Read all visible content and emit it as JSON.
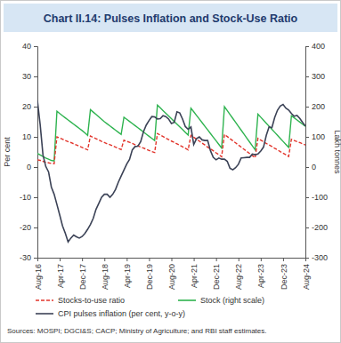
{
  "chart_data": {
    "type": "line",
    "title": "Chart II.14: Pulses Inflation and Stock-Use Ratio",
    "source": "Sources: MOSPI; DGCI&S; CACP; Ministry of Agriculture; and RBI staff estimates.",
    "y_label": "Per cent",
    "y2_label": "Lakh tonnes",
    "categories": [
      "Aug-16",
      null,
      null,
      null,
      null,
      null,
      null,
      null,
      "Apr-17",
      null,
      null,
      null,
      null,
      null,
      null,
      null,
      "Dec-17",
      null,
      null,
      null,
      null,
      null,
      null,
      null,
      "Aug-18",
      null,
      null,
      null,
      null,
      null,
      null,
      null,
      "Apr-19",
      null,
      null,
      null,
      null,
      null,
      null,
      null,
      "Dec-19",
      null,
      null,
      null,
      null,
      null,
      null,
      null,
      "Aug-20",
      null,
      null,
      null,
      null,
      null,
      null,
      null,
      "Apr-21",
      null,
      null,
      null,
      null,
      null,
      null,
      null,
      "Dec-21",
      null,
      null,
      null,
      null,
      null,
      null,
      null,
      "Aug-22",
      null,
      null,
      null,
      null,
      null,
      null,
      null,
      "Apr-23",
      null,
      null,
      null,
      null,
      null,
      null,
      null,
      "Dec-23",
      null,
      null,
      null,
      null,
      null,
      null,
      null,
      "Aug-24"
    ],
    "ylim": [
      -30,
      40
    ],
    "yticks": [
      -30,
      -20,
      -10,
      0,
      10,
      20,
      30,
      40
    ],
    "y2lim": [
      -300,
      400
    ],
    "y2ticks": [
      -300,
      -200,
      -100,
      0,
      100,
      200,
      300,
      400
    ],
    "grid": false,
    "legend": "bottom",
    "series": [
      {
        "name": "Stocks-to-use ratio",
        "color": "#e2342b",
        "line_style": "dashed",
        "values": [
          2.4,
          2.2,
          1.9,
          1.6,
          1.4,
          1.2,
          1.1,
          10.0,
          9.6,
          9.2,
          8.8,
          8.4,
          8.1,
          7.7,
          7.3,
          6.9,
          6.5,
          6.1,
          5.7,
          10.3,
          9.8,
          9.4,
          9.0,
          8.5,
          8.1,
          7.7,
          7.4,
          7.0,
          6.6,
          6.2,
          5.8,
          8.9,
          8.5,
          8.2,
          7.8,
          7.4,
          7.0,
          6.6,
          6.3,
          5.9,
          5.5,
          5.1,
          4.8,
          11.1,
          10.6,
          10.1,
          9.6,
          9.1,
          8.6,
          8.2,
          7.7,
          7.2,
          6.7,
          6.2,
          5.7,
          10.5,
          9.9,
          9.2,
          8.6,
          7.9,
          7.3,
          6.6,
          6.0,
          5.4,
          4.7,
          4.1,
          3.4,
          10.8,
          10.1,
          9.4,
          8.7,
          8.0,
          7.3,
          6.6,
          5.9,
          5.2,
          4.5,
          3.8,
          3.1,
          9.5,
          8.9,
          8.4,
          7.8,
          7.3,
          6.8,
          6.2,
          5.7,
          5.1,
          4.6,
          4.1,
          3.5,
          9.2,
          8.8,
          8.4,
          8.1,
          7.7,
          7.3
        ]
      },
      {
        "name": "Stock (right scale)",
        "color": "#2eb34f",
        "line_style": "solid",
        "axis": "y2",
        "values": [
          45,
          40,
          35,
          30,
          26,
          22,
          20,
          185,
          177,
          170,
          163,
          156,
          149,
          142,
          135,
          128,
          121,
          113,
          105,
          190,
          182,
          174,
          166,
          158,
          150,
          143,
          136,
          129,
          122,
          115,
          108,
          165,
          158,
          151,
          144,
          137,
          130,
          123,
          116,
          109,
          102,
          95,
          88,
          205,
          196,
          187,
          178,
          169,
          160,
          151,
          142,
          133,
          124,
          115,
          106,
          195,
          183,
          171,
          159,
          147,
          135,
          123,
          111,
          99,
          87,
          75,
          63,
          200,
          187,
          174,
          161,
          148,
          135,
          122,
          109,
          96,
          83,
          70,
          57,
          175,
          165,
          155,
          145,
          135,
          125,
          115,
          105,
          95,
          85,
          75,
          65,
          170,
          163,
          156,
          149,
          142,
          135
        ]
      },
      {
        "name": "CPI pulses inflation (per cent, y-o-y)",
        "color": "#3b4256",
        "line_style": "solid",
        "values": [
          22,
          14,
          4,
          0.2,
          -1.6,
          -6.6,
          -9.0,
          -12.4,
          -15.9,
          -19.5,
          -21.9,
          -24.8,
          -23.5,
          -22.5,
          -23.1,
          -23.5,
          -23.0,
          -22.0,
          -20.6,
          -19.0,
          -17.0,
          -14.0,
          -12.0,
          -10.0,
          -9.0,
          -9.0,
          -10.0,
          -9.0,
          -7.4,
          -5.0,
          -3.0,
          -1.0,
          1.0,
          2.5,
          5.7,
          6.8,
          6.9,
          8.4,
          11.7,
          13.9,
          15.4,
          16.7,
          16.6,
          15.9,
          16.0,
          17.0,
          16.7,
          15.9,
          14.4,
          14.8,
          18.3,
          17.9,
          15.9,
          13.4,
          12.5,
          13.3,
          7.5,
          9.4,
          10.0,
          9.0,
          8.8,
          8.8,
          5.4,
          3.2,
          2.4,
          3.0,
          2.6,
          2.6,
          1.9,
          -0.4,
          -0.9,
          -0.2,
          0.9,
          3.0,
          3.1,
          3.2,
          3.2,
          4.3,
          4.1,
          4.3,
          5.3,
          6.6,
          10.5,
          13.3,
          13.0,
          16.4,
          18.8,
          20.2,
          20.7,
          19.5,
          18.9,
          17.7,
          16.8,
          17.1,
          16.1,
          14.8,
          13.6
        ]
      }
    ]
  }
}
